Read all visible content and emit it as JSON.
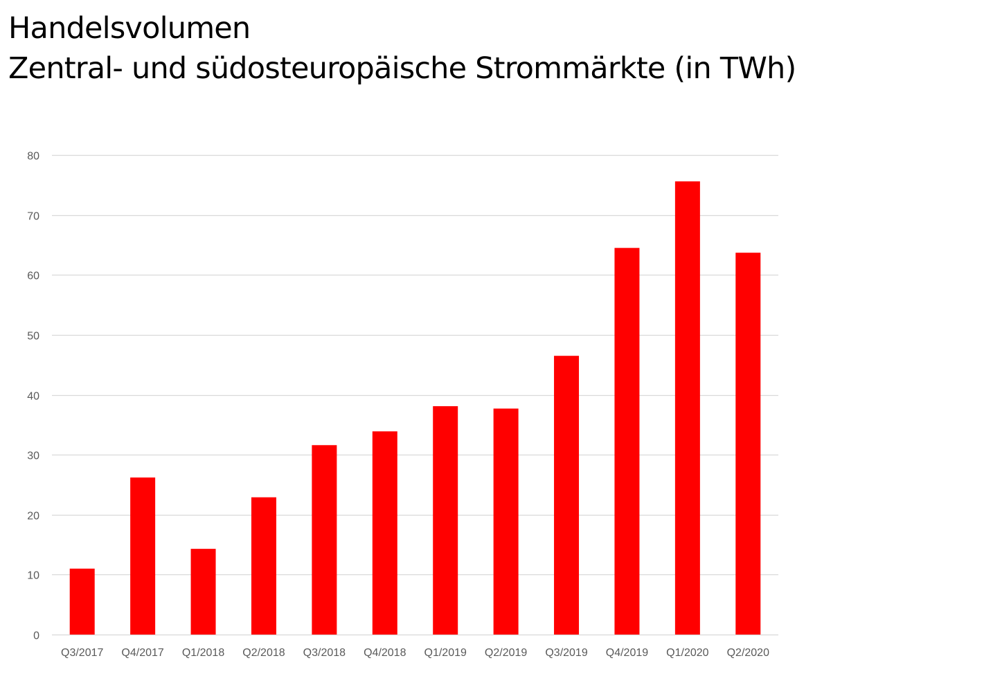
{
  "header": {
    "title_line1": "Handelsvolumen",
    "title_line2": "Zentral- und südosteuropäische Strommärkte (in TWh)"
  },
  "chart_data": {
    "type": "bar",
    "title": "Handelsvolumen Zentral- und südosteuropäische Strommärkte (in TWh)",
    "xlabel": "",
    "ylabel": "",
    "categories": [
      "Q3/2017",
      "Q4/2017",
      "Q1/2018",
      "Q2/2018",
      "Q3/2018",
      "Q4/2018",
      "Q1/2019",
      "Q2/2019",
      "Q3/2019",
      "Q4/2019",
      "Q1/2020",
      "Q2/2020"
    ],
    "values": [
      11.0,
      26.2,
      14.3,
      22.9,
      31.6,
      33.9,
      38.1,
      37.7,
      46.5,
      64.5,
      75.6,
      63.7
    ],
    "ylim": [
      0,
      80
    ],
    "yticks": [
      0,
      10,
      20,
      30,
      40,
      50,
      60,
      70,
      80
    ],
    "grid": true,
    "legend": "none",
    "bar_color": "#ff0000",
    "grid_color": "#d9d9d9",
    "tick_color": "#595959"
  }
}
